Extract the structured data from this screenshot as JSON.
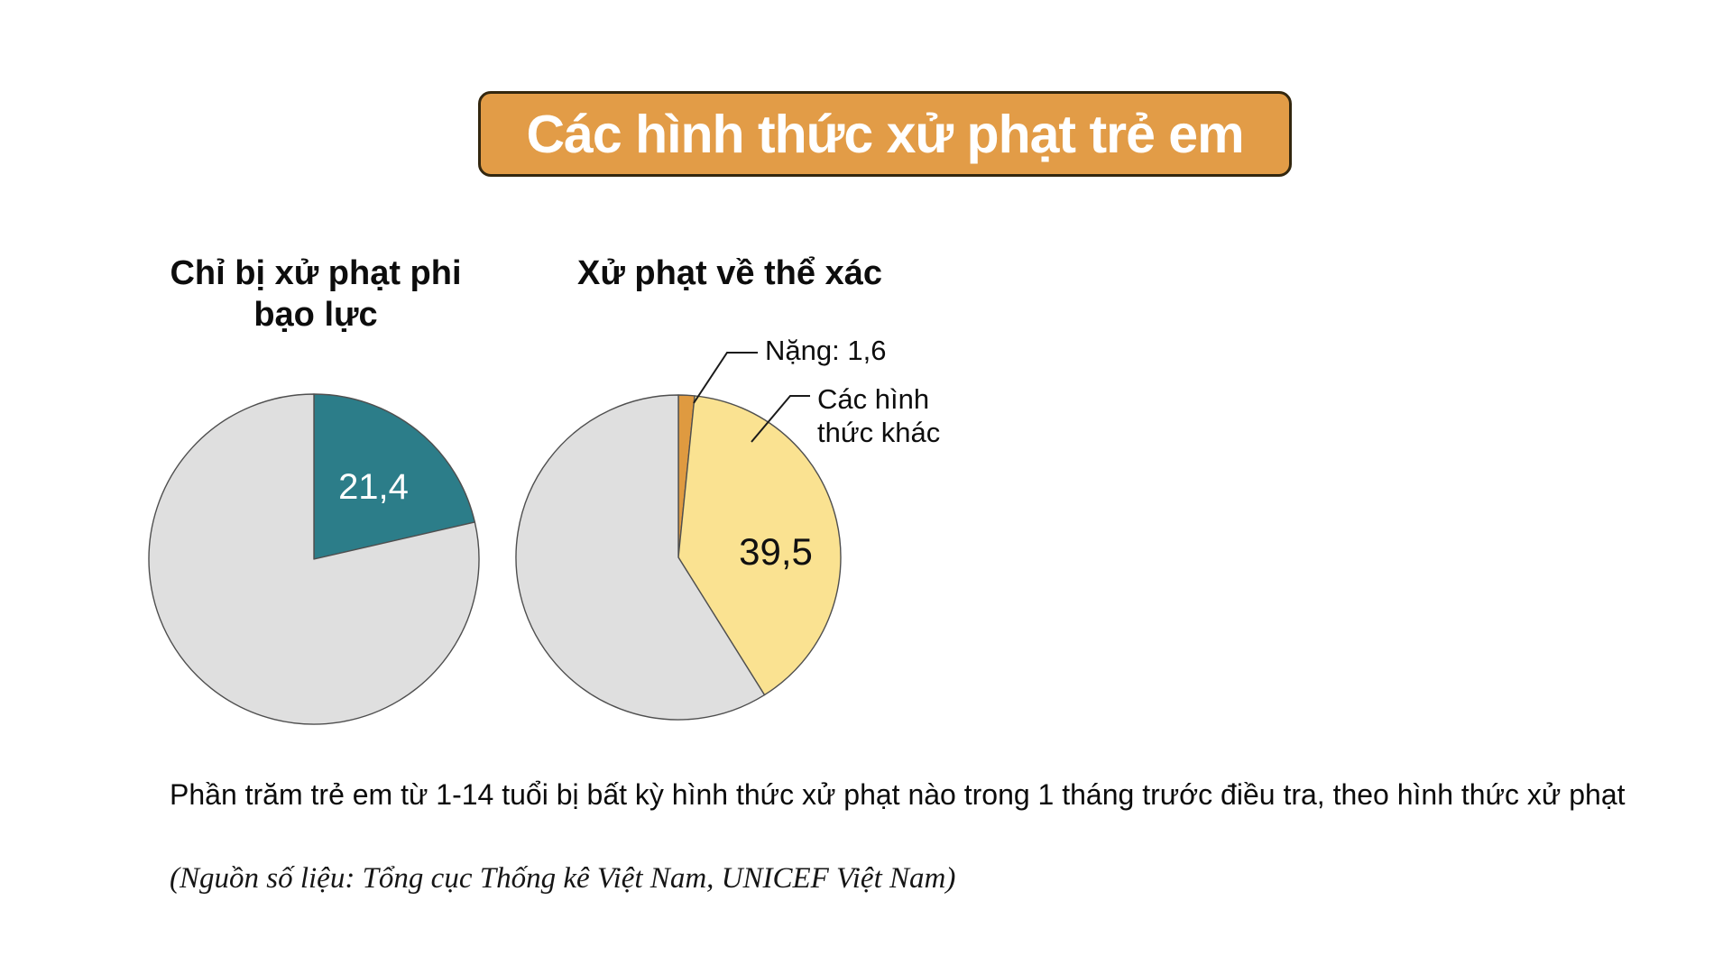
{
  "header": {
    "title": "Các hình thức xử phạt trẻ em",
    "box_color": "#E29C47",
    "box_border_color": "#33270F",
    "text_color": "#FFFFFF"
  },
  "caption": {
    "text": "Phần trăm trẻ em từ 1-14 tuổi bị bất kỳ hình thức xử phạt nào trong 1 tháng trước điều tra, theo hình thức xử phạt"
  },
  "source": {
    "text": "(Nguồn số liệu: Tổng cục Thống kê Việt Nam, UNICEF Việt Nam)"
  },
  "palette": {
    "teal": "#2C7D89",
    "yellow": "#FAE291",
    "orange": "#DF9A40",
    "gray": "#DFDFDF",
    "outline": "#4F4F4F"
  },
  "chart_data": [
    {
      "type": "pie",
      "title": "Chỉ bị xử phạt phi\nbạo lực",
      "start_angle_deg": 0,
      "direction": "clockwise",
      "units": "percent",
      "slices": [
        {
          "name": "chi-bi-xu-phat-phi-bao-luc",
          "label": "21,4",
          "value": 21.4,
          "color": "#2C7D89"
        },
        {
          "name": "remainder",
          "label": "",
          "value": 78.6,
          "color": "#DFDFDF"
        }
      ]
    },
    {
      "type": "pie",
      "title": "Xử phạt về thể xác",
      "start_angle_deg": 0,
      "direction": "clockwise",
      "units": "percent",
      "slices": [
        {
          "name": "nang",
          "label": "Nặng: 1,6",
          "value": 1.6,
          "color": "#DF9A40"
        },
        {
          "name": "cac-hinh-thuc-khac",
          "label": "39,5",
          "callout": "Các hình\nthức khác",
          "value": 39.5,
          "color": "#FAE291"
        },
        {
          "name": "remainder",
          "label": "",
          "value": 58.9,
          "color": "#DFDFDF"
        }
      ]
    }
  ]
}
